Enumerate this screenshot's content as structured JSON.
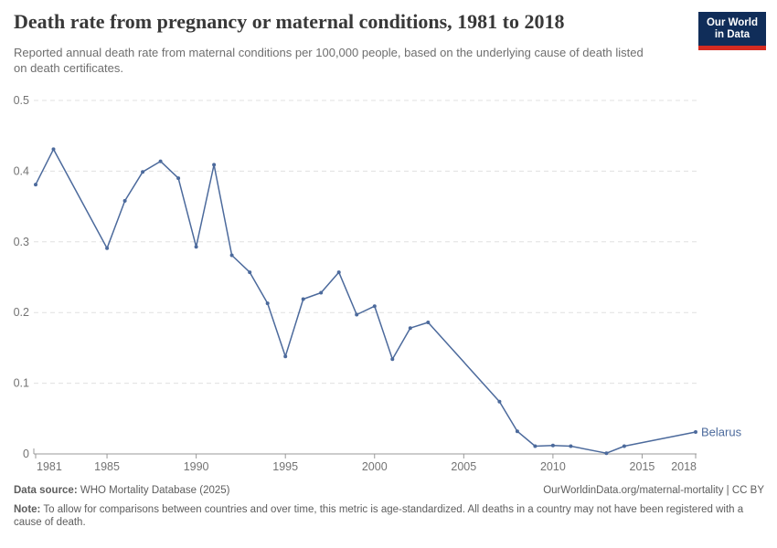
{
  "header": {
    "title": "Death rate from pregnancy or maternal conditions, 1981 to 2018",
    "subtitle": "Reported annual death rate from maternal conditions per 100,000 people, based on the underlying cause of death listed on death certificates.",
    "logo": {
      "line1": "Our World",
      "line2": "in Data"
    }
  },
  "chart_data": {
    "type": "line",
    "title": "Death rate from pregnancy or maternal conditions, 1981 to 2018",
    "xlabel": "",
    "ylabel": "",
    "xlim": [
      1981,
      2018
    ],
    "ylim": [
      0,
      0.5
    ],
    "x_ticks": [
      1981,
      1985,
      1990,
      1995,
      2000,
      2005,
      2010,
      2015,
      2018
    ],
    "y_ticks": [
      0,
      0.1,
      0.2,
      0.3,
      0.4,
      0.5
    ],
    "grid": "horizontal-dashed",
    "legend_position": "line-end-label",
    "line_color": "#4c6a9c",
    "series": [
      {
        "name": "Belarus",
        "points": [
          [
            1981,
            0.381
          ],
          [
            1982,
            0.431
          ],
          [
            1985,
            0.291
          ],
          [
            1986,
            0.358
          ],
          [
            1987,
            0.399
          ],
          [
            1988,
            0.414
          ],
          [
            1989,
            0.39
          ],
          [
            1990,
            0.293
          ],
          [
            1991,
            0.409
          ],
          [
            1992,
            0.281
          ],
          [
            1993,
            0.257
          ],
          [
            1994,
            0.213
          ],
          [
            1995,
            0.138
          ],
          [
            1996,
            0.219
          ],
          [
            1997,
            0.228
          ],
          [
            1998,
            0.257
          ],
          [
            1999,
            0.197
          ],
          [
            2000,
            0.209
          ],
          [
            2001,
            0.134
          ],
          [
            2002,
            0.178
          ],
          [
            2003,
            0.186
          ],
          [
            2007,
            0.074
          ],
          [
            2008,
            0.032
          ],
          [
            2009,
            0.011
          ],
          [
            2010,
            0.012
          ],
          [
            2011,
            0.011
          ],
          [
            2013,
            0.001
          ],
          [
            2014,
            0.011
          ],
          [
            2018,
            0.031
          ]
        ]
      }
    ]
  },
  "footer": {
    "data_source_label": "Data source:",
    "data_source_value": "WHO Mortality Database (2025)",
    "credit": "OurWorldinData.org/maternal-mortality | CC BY",
    "note_label": "Note:",
    "note_value": "To allow for comparisons between countries and over time, this metric is age-standardized. All deaths in a country may not have been registered with a cause of death."
  },
  "colors": {
    "line": "#4c6a9c",
    "title_text": "#383838",
    "subtitle_text": "#6e6e6e",
    "axis_text": "#737373",
    "gridline": "#e0e0e0",
    "axis_line": "#999999",
    "logo_bg": "#102d59",
    "logo_red": "#d42b21",
    "footer_text": "#5d5d5d"
  }
}
